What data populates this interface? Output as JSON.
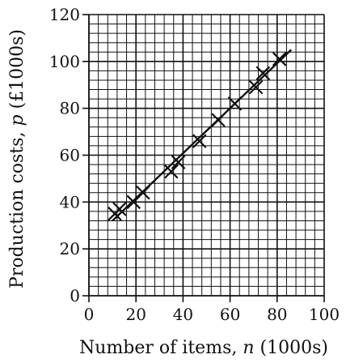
{
  "chart_data": {
    "type": "scatter",
    "title": "",
    "xlabel_prefix": "Number of items, ",
    "xlabel_var": "n",
    "xlabel_suffix": " (1000s)",
    "ylabel_prefix": "Production costs, ",
    "ylabel_var": "p",
    "ylabel_suffix": " (£1000s)",
    "xlim": [
      0,
      100
    ],
    "ylim": [
      0,
      120
    ],
    "xticks": [
      0,
      20,
      40,
      60,
      80,
      100
    ],
    "yticks": [
      0,
      20,
      40,
      60,
      80,
      100,
      120
    ],
    "x_tick_labels": [
      "0",
      "20",
      "40",
      "60",
      "80",
      "100"
    ],
    "y_tick_labels": [
      "0",
      "20",
      "40",
      "60",
      "80",
      "100",
      "120"
    ],
    "grid": true,
    "grid_minor_step_x": 4,
    "grid_minor_step_y": 4,
    "points": [
      {
        "x": 11,
        "y": 35
      },
      {
        "x": 13,
        "y": 37
      },
      {
        "x": 19,
        "y": 40
      },
      {
        "x": 23,
        "y": 44
      },
      {
        "x": 35,
        "y": 53
      },
      {
        "x": 38,
        "y": 57
      },
      {
        "x": 47,
        "y": 66
      },
      {
        "x": 55,
        "y": 75
      },
      {
        "x": 62,
        "y": 82
      },
      {
        "x": 71,
        "y": 89
      },
      {
        "x": 74,
        "y": 95
      },
      {
        "x": 81,
        "y": 101
      }
    ],
    "line_of_best_fit": {
      "x": [
        10,
        86
      ],
      "y": [
        32,
        105
      ]
    }
  }
}
